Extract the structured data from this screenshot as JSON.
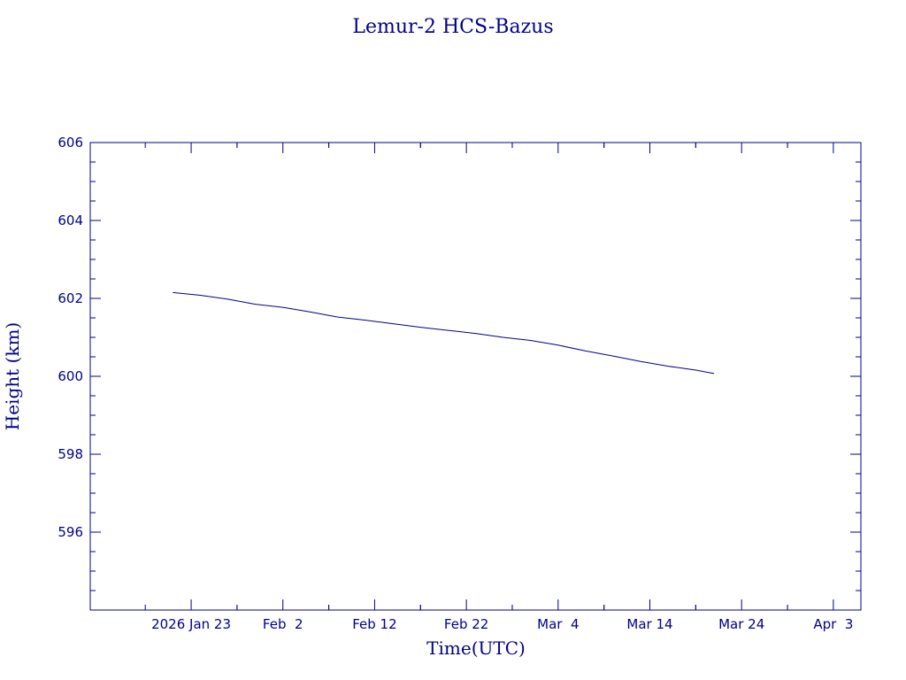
{
  "chart_data": {
    "type": "line",
    "title": "Lemur-2 HCS-Bazus",
    "xlabel": "Time(UTC)",
    "ylabel": "Height (km)",
    "ylim": [
      594,
      606
    ],
    "xlim": [
      "2026-01-12",
      "2026-04-06"
    ],
    "grid": false,
    "line_color": "#00008b",
    "y_ticks": [
      596,
      598,
      600,
      602,
      604,
      606
    ],
    "y_tick_labels": [
      "596",
      "598",
      "600",
      "602",
      "604",
      "606"
    ],
    "x_ticks": [
      "2026-01-23",
      "2026-02-02",
      "2026-02-12",
      "2026-02-22",
      "2026-03-04",
      "2026-03-14",
      "2026-03-24",
      "2026-04-03"
    ],
    "x_tick_labels": [
      "2026 Jan 23",
      "Feb  2",
      "Feb 12",
      "Feb 22",
      "Mar  4",
      "Mar 14",
      "Mar 24",
      "Apr  3"
    ],
    "series": [
      {
        "x": [
          "2026-01-21",
          "2026-01-24",
          "2026-01-27",
          "2026-01-30",
          "2026-02-02",
          "2026-02-05",
          "2026-02-08",
          "2026-02-11",
          "2026-02-14",
          "2026-02-17",
          "2026-02-20",
          "2026-02-23",
          "2026-02-26",
          "2026-03-01",
          "2026-03-04",
          "2026-03-07",
          "2026-03-10",
          "2026-03-13",
          "2026-03-16",
          "2026-03-19",
          "2026-03-21"
        ],
        "y": [
          602.15,
          602.08,
          601.98,
          601.85,
          601.77,
          601.65,
          601.52,
          601.44,
          601.35,
          601.26,
          601.18,
          601.1,
          601.0,
          600.92,
          600.8,
          600.65,
          600.52,
          600.38,
          600.26,
          600.16,
          600.07
        ]
      }
    ]
  }
}
